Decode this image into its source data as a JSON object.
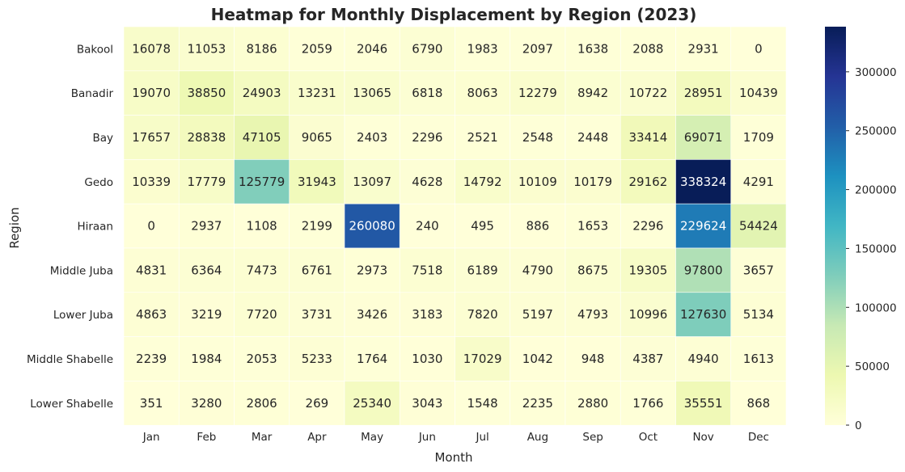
{
  "chart_data": {
    "type": "heatmap",
    "title": "Heatmap for Monthly Displacement by Region (2023)",
    "xlabel": "Month",
    "ylabel": "Region",
    "columns": [
      "Jan",
      "Feb",
      "Mar",
      "Apr",
      "May",
      "Jun",
      "Jul",
      "Aug",
      "Sep",
      "Oct",
      "Nov",
      "Dec"
    ],
    "rows": [
      "Bakool",
      "Banadir",
      "Bay",
      "Gedo",
      "Hiraan",
      "Middle Juba",
      "Lower Juba",
      "Middle Shabelle",
      "Lower Shabelle"
    ],
    "values": [
      [
        16078,
        11053,
        8186,
        2059,
        2046,
        6790,
        1983,
        2097,
        1638,
        2088,
        2931,
        0
      ],
      [
        19070,
        38850,
        24903,
        13231,
        13065,
        6818,
        8063,
        12279,
        8942,
        10722,
        28951,
        10439
      ],
      [
        17657,
        28838,
        47105,
        9065,
        2403,
        2296,
        2521,
        2548,
        2448,
        33414,
        69071,
        1709
      ],
      [
        10339,
        17779,
        125779,
        31943,
        13097,
        4628,
        14792,
        10109,
        10179,
        29162,
        338324,
        4291
      ],
      [
        0,
        2937,
        1108,
        2199,
        260080,
        240,
        495,
        886,
        1653,
        2296,
        229624,
        54424
      ],
      [
        4831,
        6364,
        7473,
        6761,
        2973,
        7518,
        6189,
        4790,
        8675,
        19305,
        97800,
        3657
      ],
      [
        4863,
        3219,
        7720,
        3731,
        3426,
        3183,
        7820,
        5197,
        4793,
        10996,
        127630,
        5134
      ],
      [
        2239,
        1984,
        2053,
        5233,
        1764,
        1030,
        17029,
        1042,
        948,
        4387,
        4940,
        1613
      ],
      [
        351,
        3280,
        2806,
        269,
        25340,
        3043,
        1548,
        2235,
        2880,
        1766,
        35551,
        868
      ]
    ],
    "colormap": "YlGnBu",
    "value_range": [
      0,
      338324
    ],
    "colorbar_ticks": [
      0,
      50000,
      100000,
      150000,
      200000,
      250000,
      300000
    ],
    "colorbar_labels": [
      "0",
      "50000",
      "100000",
      "150000",
      "200000",
      "250000",
      "300000"
    ],
    "grid": false,
    "legend": "colorbar-right"
  }
}
